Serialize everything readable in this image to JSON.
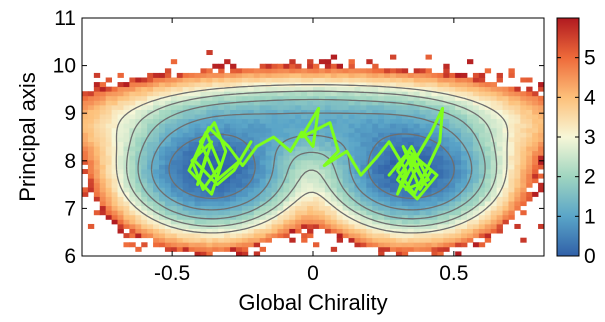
{
  "chart_data": {
    "type": "heatmap",
    "title": "",
    "xlabel": "Global Chirality",
    "ylabel": "Principal axis",
    "xlim": [
      -0.82,
      0.82
    ],
    "ylim": [
      6,
      11
    ],
    "xticks": [
      -0.5,
      0,
      0.5
    ],
    "xtick_labels": [
      "-0.5",
      "0",
      "0.5"
    ],
    "yticks": [
      6,
      7,
      8,
      9,
      10,
      11
    ],
    "ytick_labels": [
      "6",
      "7",
      "8",
      "9",
      "10",
      "11"
    ],
    "grid": false,
    "colorbar": {
      "range": [
        0,
        6
      ],
      "ticks": [
        0,
        1,
        2,
        3,
        4,
        5
      ],
      "tick_labels": [
        "0",
        "1",
        "2",
        "3",
        "4",
        "5"
      ],
      "colormap": [
        "#3060a8",
        "#5aa5c8",
        "#9fd5c0",
        "#f7f7d8",
        "#fdc07a",
        "#ee6a3a",
        "#b01a20"
      ]
    },
    "density_model": {
      "basins": [
        {
          "center": [
            -0.36,
            7.8
          ],
          "spread": [
            0.14,
            0.55
          ]
        },
        {
          "center": [
            0.35,
            7.8
          ],
          "spread": [
            0.14,
            0.55
          ]
        }
      ],
      "bridge_y": 8.8,
      "contour_levels": [
        0.6,
        1.2,
        1.8,
        2.4,
        3.0
      ],
      "contour_color": "#6e6e6e"
    },
    "trajectory": {
      "color": "#7fff1a",
      "x": [
        -0.38,
        -0.41,
        -0.36,
        -0.43,
        -0.39,
        -0.33,
        -0.38,
        -0.44,
        -0.36,
        -0.31,
        -0.35,
        -0.4,
        -0.34,
        -0.26,
        -0.22,
        -0.28,
        -0.34,
        -0.42,
        -0.37,
        -0.3,
        -0.25,
        -0.2,
        -0.14,
        -0.08,
        -0.04,
        0.0,
        0.02,
        -0.04,
        0.06,
        0.09,
        0.04,
        0.12,
        0.17,
        0.23,
        0.27,
        0.33,
        0.3,
        0.36,
        0.42,
        0.46,
        0.45,
        0.41,
        0.36,
        0.3,
        0.35,
        0.41,
        0.33,
        0.38,
        0.44,
        0.37,
        0.3,
        0.35,
        0.4,
        0.36,
        0.32,
        0.38,
        0.42,
        0.34,
        0.27
      ],
      "y": [
        8.1,
        7.5,
        8.4,
        8.0,
        7.4,
        7.9,
        8.6,
        7.8,
        7.3,
        8.2,
        8.8,
        8.4,
        7.6,
        8.0,
        8.4,
        7.8,
        7.5,
        8.0,
        8.7,
        8.3,
        7.9,
        8.3,
        8.5,
        8.2,
        8.6,
        8.3,
        9.1,
        8.5,
        8.8,
        8.2,
        7.9,
        8.2,
        7.7,
        8.1,
        8.4,
        7.8,
        7.3,
        8.0,
        8.6,
        9.1,
        8.4,
        7.9,
        7.3,
        7.8,
        8.3,
        7.6,
        7.4,
        8.0,
        7.7,
        7.2,
        7.6,
        8.1,
        7.5,
        7.9,
        8.3,
        7.4,
        7.8,
        8.2,
        7.7
      ]
    }
  }
}
